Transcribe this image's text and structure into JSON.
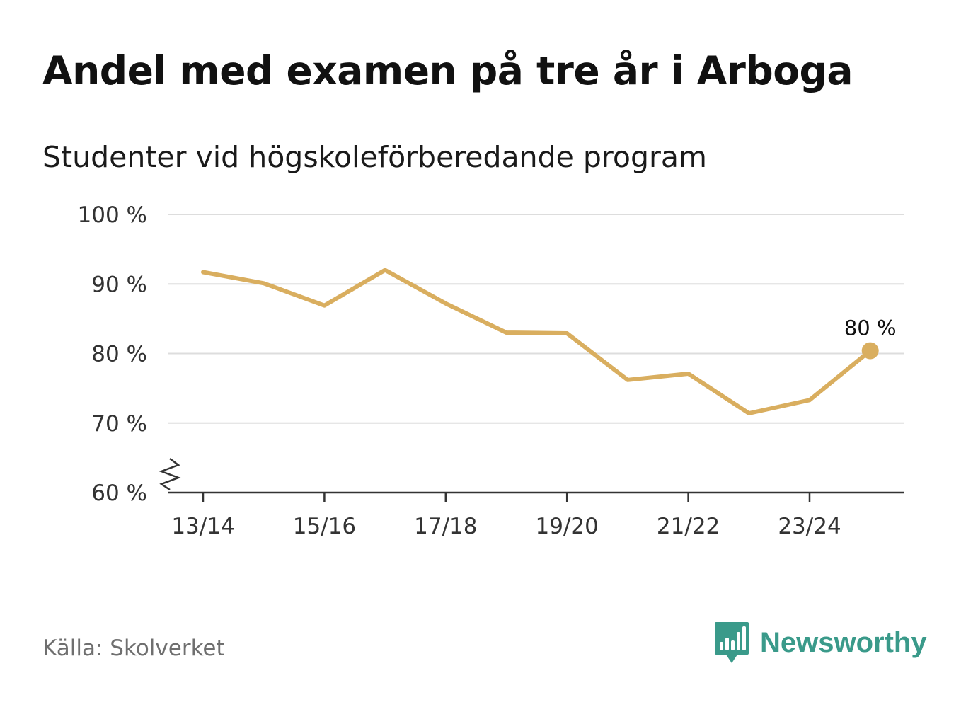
{
  "header": {
    "title": "Andel med examen på tre år i Arboga",
    "subtitle": "Studenter vid högskoleförberedande program"
  },
  "footer": {
    "source": "Källa: Skolverket",
    "brand": "Newsworthy",
    "brand_icon": "newsworthy-logo-icon"
  },
  "colors": {
    "line": "#D9AE5F",
    "grid": "#DDDDDD",
    "axis": "#333333",
    "brand": "#3A9A8A"
  },
  "chart_data": {
    "type": "line",
    "y_axis_break": true,
    "ylim": [
      60,
      100
    ],
    "yticks": [
      60,
      70,
      80,
      90,
      100
    ],
    "ytick_labels": [
      "60 %",
      "70 %",
      "80 %",
      "90 %",
      "100 %"
    ],
    "x": [
      "13/14",
      "14/15",
      "15/16",
      "16/17",
      "17/18",
      "18/19",
      "19/20",
      "20/21",
      "21/22",
      "22/23",
      "23/24",
      "24/25"
    ],
    "xtick_labels": [
      "13/14",
      "15/16",
      "17/18",
      "19/20",
      "21/22",
      "23/24"
    ],
    "series": [
      {
        "values": [
          91.7,
          90.1,
          86.9,
          92.0,
          87.2,
          83.0,
          82.9,
          76.2,
          77.1,
          71.4,
          73.3,
          80.4
        ]
      }
    ],
    "end_label": "80 %",
    "grid": true,
    "legend": "none"
  }
}
